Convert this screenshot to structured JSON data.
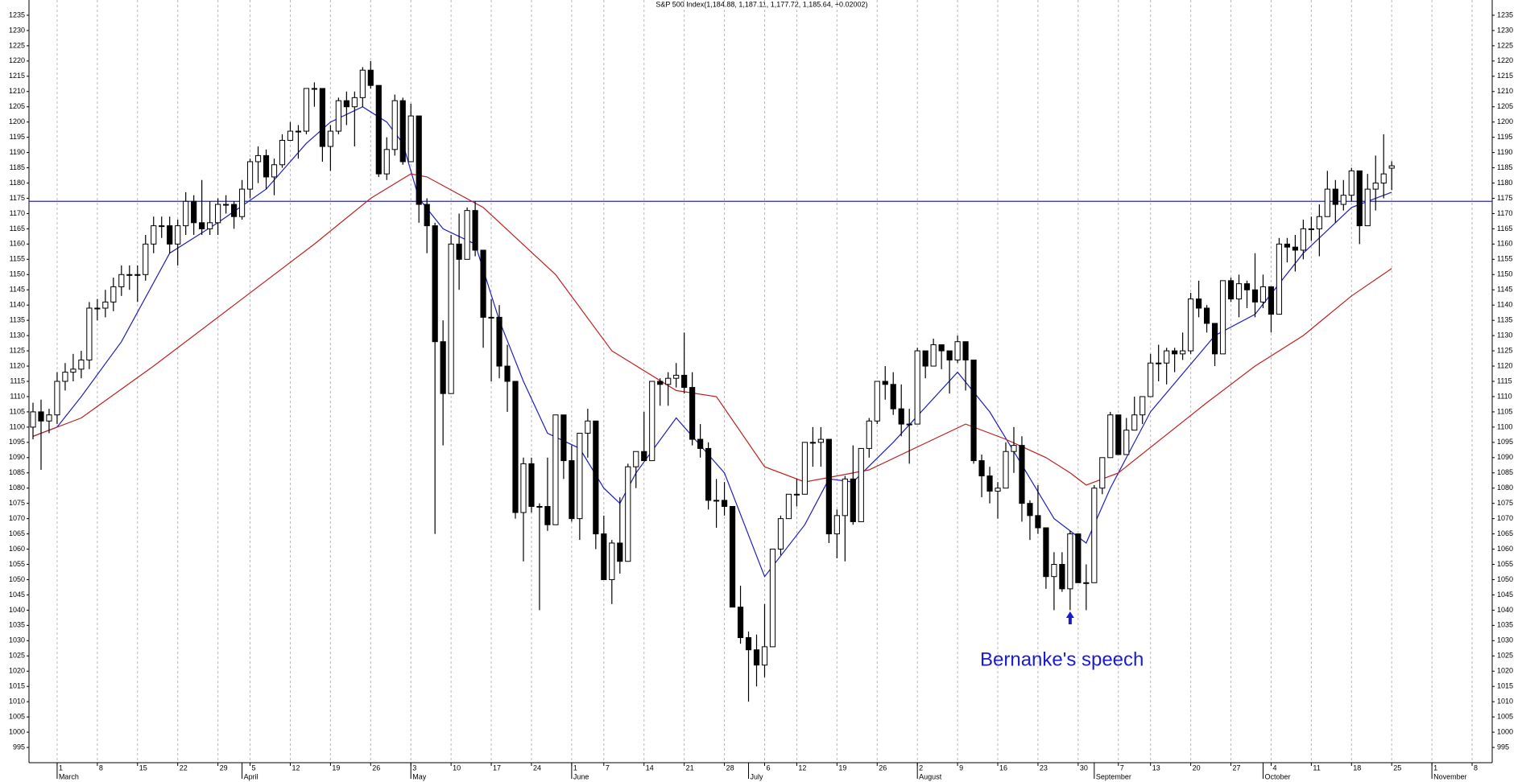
{
  "chart_data": {
    "type": "candlestick",
    "title": "S&P 500 Index(1,184.88, 1,187.11, 1,177.72, 1,185.64, +0.02002)",
    "annotation": "Bernanke's speech",
    "annotation_color": "#1a1ad0",
    "up_color": "#ffffff",
    "down_color": "#000000",
    "grid": true,
    "ylim": [
      990,
      1240
    ],
    "yticks": [
      995,
      1000,
      1005,
      1010,
      1015,
      1020,
      1025,
      1030,
      1035,
      1040,
      1045,
      1050,
      1055,
      1060,
      1065,
      1070,
      1075,
      1080,
      1085,
      1090,
      1095,
      1100,
      1105,
      1110,
      1115,
      1120,
      1125,
      1130,
      1135,
      1140,
      1145,
      1150,
      1155,
      1160,
      1165,
      1170,
      1175,
      1180,
      1185,
      1190,
      1195,
      1200,
      1205,
      1210,
      1215,
      1220,
      1225,
      1230,
      1235
    ],
    "hline": {
      "value": 1174,
      "color": "#2a2aa8"
    },
    "categories": [
      null,
      null,
      null,
      "1",
      null,
      null,
      null,
      null,
      "8",
      null,
      null,
      null,
      null,
      "15",
      null,
      null,
      null,
      null,
      "22",
      null,
      null,
      null,
      null,
      "29",
      null,
      null,
      null,
      "5",
      null,
      null,
      null,
      null,
      "12",
      null,
      null,
      null,
      null,
      "19",
      null,
      null,
      null,
      null,
      "26",
      null,
      null,
      null,
      null,
      "3",
      null,
      null,
      null,
      null,
      "10",
      null,
      null,
      null,
      null,
      "17",
      null,
      null,
      null,
      null,
      "24",
      null,
      null,
      null,
      null,
      "1",
      null,
      null,
      null,
      "7",
      null,
      null,
      null,
      null,
      "14",
      null,
      null,
      null,
      null,
      "21",
      null,
      null,
      null,
      null,
      "28",
      null,
      null,
      null,
      null,
      "6",
      null,
      null,
      null,
      "12",
      null,
      null,
      null,
      null,
      "19",
      null,
      null,
      null,
      null,
      "26",
      null,
      null,
      null,
      null,
      "2",
      null,
      null,
      null,
      null,
      "9",
      null,
      null,
      null,
      null,
      "16",
      null,
      null,
      null,
      null,
      "23",
      null,
      null,
      null,
      null,
      "30",
      null,
      null,
      null,
      null,
      "7",
      null,
      null,
      null,
      "13",
      null,
      null,
      null,
      null,
      "20",
      null,
      null,
      null,
      null,
      "27",
      null,
      null,
      null,
      null,
      "4",
      null,
      null,
      null,
      null,
      "11",
      null,
      null,
      null,
      null,
      "18",
      null,
      null,
      null,
      null,
      "25",
      null,
      null,
      null,
      null,
      "1",
      null,
      null,
      null,
      null,
      "8",
      null,
      null
    ],
    "month_ticks": [
      {
        "value": 3,
        "label": "March"
      },
      {
        "value": 26,
        "label": "April"
      },
      {
        "value": 47,
        "label": "May"
      },
      {
        "value": 67,
        "label": "June"
      },
      {
        "value": 89,
        "label": "July"
      },
      {
        "value": 110,
        "label": "August"
      },
      {
        "value": 132,
        "label": "September"
      },
      {
        "value": 153,
        "label": "October"
      },
      {
        "value": 174,
        "label": "November"
      }
    ],
    "ohlc": [
      [
        1100,
        1108,
        1096,
        1105
      ],
      [
        1105,
        1109,
        1086,
        1102
      ],
      [
        1102,
        1106,
        1098,
        1104
      ],
      [
        1104,
        1118,
        1101,
        1115
      ],
      [
        1115,
        1121,
        1112,
        1118
      ],
      [
        1118,
        1124,
        1115,
        1119
      ],
      [
        1119,
        1125,
        1116,
        1122
      ],
      [
        1122,
        1141,
        1119,
        1139
      ],
      [
        1139,
        1142,
        1135,
        1139
      ],
      [
        1139,
        1145,
        1136,
        1141
      ],
      [
        1141,
        1149,
        1138,
        1146
      ],
      [
        1146,
        1153,
        1143,
        1150
      ],
      [
        1150,
        1153,
        1145,
        1150
      ],
      [
        1150,
        1153,
        1141,
        1150
      ],
      [
        1150,
        1163,
        1148,
        1160
      ],
      [
        1160,
        1169,
        1157,
        1166
      ],
      [
        1166,
        1169,
        1162,
        1166
      ],
      [
        1166,
        1169,
        1157,
        1160
      ],
      [
        1160,
        1168,
        1153,
        1166
      ],
      [
        1166,
        1177,
        1163,
        1174
      ],
      [
        1174,
        1176,
        1163,
        1167
      ],
      [
        1167,
        1181,
        1163,
        1165
      ],
      [
        1165,
        1174,
        1163,
        1167
      ],
      [
        1167,
        1175,
        1163,
        1173
      ],
      [
        1173,
        1176,
        1170,
        1173
      ],
      [
        1173,
        1174,
        1165,
        1169
      ],
      [
        1169,
        1181,
        1168,
        1178
      ],
      [
        1178,
        1188,
        1175,
        1187
      ],
      [
        1187,
        1192,
        1180,
        1189
      ],
      [
        1189,
        1191,
        1178,
        1182
      ],
      [
        1182,
        1188,
        1176,
        1186
      ],
      [
        1186,
        1196,
        1185,
        1194
      ],
      [
        1194,
        1200,
        1194,
        1197
      ],
      [
        1197,
        1199,
        1188,
        1197
      ],
      [
        1197,
        1211,
        1196,
        1211
      ],
      [
        1211,
        1213,
        1205,
        1211
      ],
      [
        1211,
        1211,
        1187,
        1192
      ],
      [
        1192,
        1199,
        1184,
        1197
      ],
      [
        1197,
        1208,
        1196,
        1207
      ],
      [
        1207,
        1210,
        1199,
        1205
      ],
      [
        1205,
        1210,
        1192,
        1208
      ],
      [
        1208,
        1218,
        1205,
        1217
      ],
      [
        1217,
        1220,
        1211,
        1212
      ],
      [
        1212,
        1212,
        1182,
        1183
      ],
      [
        1183,
        1195,
        1181,
        1191
      ],
      [
        1191,
        1209,
        1189,
        1207
      ],
      [
        1207,
        1208,
        1186,
        1187
      ],
      [
        1187,
        1206,
        1187,
        1202
      ],
      [
        1202,
        1202,
        1167,
        1173
      ],
      [
        1173,
        1175,
        1157,
        1166
      ],
      [
        1166,
        1167,
        1065,
        1128
      ],
      [
        1128,
        1135,
        1094,
        1111
      ],
      [
        1111,
        1163,
        1111,
        1160
      ],
      [
        1160,
        1170,
        1145,
        1155
      ],
      [
        1155,
        1172,
        1155,
        1171
      ],
      [
        1171,
        1174,
        1156,
        1158
      ],
      [
        1158,
        1158,
        1126,
        1136
      ],
      [
        1136,
        1142,
        1115,
        1136
      ],
      [
        1136,
        1140,
        1116,
        1120
      ],
      [
        1120,
        1127,
        1105,
        1115
      ],
      [
        1115,
        1115,
        1070,
        1072
      ],
      [
        1072,
        1090,
        1056,
        1088
      ],
      [
        1088,
        1090,
        1072,
        1074
      ],
      [
        1074,
        1075,
        1040,
        1074
      ],
      [
        1074,
        1090,
        1066,
        1068
      ],
      [
        1068,
        1104,
        1068,
        1104
      ],
      [
        1104,
        1104,
        1083,
        1089
      ],
      [
        1089,
        1094,
        1069,
        1070
      ],
      [
        1070,
        1098,
        1063,
        1098
      ],
      [
        1098,
        1106,
        1090,
        1102
      ],
      [
        1102,
        1102,
        1060,
        1065
      ],
      [
        1065,
        1071,
        1050,
        1050
      ],
      [
        1050,
        1063,
        1042,
        1062
      ],
      [
        1062,
        1077,
        1052,
        1056
      ],
      [
        1056,
        1088,
        1056,
        1087
      ],
      [
        1087,
        1092,
        1080,
        1092
      ],
      [
        1092,
        1105,
        1089,
        1089
      ],
      [
        1089,
        1115,
        1089,
        1115
      ],
      [
        1115,
        1116,
        1107,
        1114
      ],
      [
        1114,
        1118,
        1107,
        1116
      ],
      [
        1116,
        1121,
        1113,
        1117
      ],
      [
        1117,
        1131,
        1111,
        1113
      ],
      [
        1113,
        1118,
        1094,
        1096
      ],
      [
        1096,
        1101,
        1090,
        1093
      ],
      [
        1093,
        1095,
        1073,
        1076
      ],
      [
        1076,
        1083,
        1067,
        1076
      ],
      [
        1076,
        1082,
        1071,
        1074
      ],
      [
        1074,
        1074,
        1041,
        1041
      ],
      [
        1041,
        1048,
        1029,
        1031
      ],
      [
        1031,
        1033,
        1010,
        1027
      ],
      [
        1027,
        1032,
        1015,
        1022
      ],
      [
        1022,
        1042,
        1018,
        1028
      ],
      [
        1028,
        1060,
        1028,
        1060
      ],
      [
        1060,
        1071,
        1058,
        1070
      ],
      [
        1070,
        1078,
        1070,
        1078
      ],
      [
        1078,
        1083,
        1074,
        1078
      ],
      [
        1078,
        1095,
        1078,
        1095
      ],
      [
        1095,
        1100,
        1087,
        1095
      ],
      [
        1095,
        1100,
        1087,
        1096
      ],
      [
        1096,
        1096,
        1062,
        1065
      ],
      [
        1065,
        1073,
        1057,
        1071
      ],
      [
        1071,
        1084,
        1056,
        1083
      ],
      [
        1083,
        1094,
        1068,
        1069
      ],
      [
        1069,
        1093,
        1069,
        1093
      ],
      [
        1093,
        1103,
        1090,
        1102
      ],
      [
        1102,
        1115,
        1101,
        1115
      ],
      [
        1115,
        1120,
        1109,
        1114
      ],
      [
        1114,
        1118,
        1104,
        1106
      ],
      [
        1106,
        1114,
        1097,
        1101
      ],
      [
        1101,
        1106,
        1088,
        1101
      ],
      [
        1101,
        1126,
        1101,
        1125
      ],
      [
        1125,
        1125,
        1116,
        1120
      ],
      [
        1120,
        1129,
        1120,
        1127
      ],
      [
        1127,
        1127,
        1119,
        1125
      ],
      [
        1125,
        1125,
        1111,
        1122
      ],
      [
        1122,
        1130,
        1121,
        1128
      ],
      [
        1128,
        1128,
        1112,
        1122
      ],
      [
        1122,
        1122,
        1088,
        1089
      ],
      [
        1089,
        1091,
        1077,
        1084
      ],
      [
        1084,
        1087,
        1075,
        1079
      ],
      [
        1079,
        1082,
        1070,
        1080
      ],
      [
        1080,
        1095,
        1080,
        1092
      ],
      [
        1092,
        1100,
        1085,
        1094
      ],
      [
        1094,
        1097,
        1069,
        1075
      ],
      [
        1075,
        1076,
        1063,
        1071
      ],
      [
        1071,
        1081,
        1065,
        1067
      ],
      [
        1067,
        1067,
        1047,
        1051
      ],
      [
        1051,
        1059,
        1040,
        1055
      ],
      [
        1055,
        1059,
        1046,
        1047
      ],
      [
        1047,
        1066,
        1040,
        1065
      ],
      [
        1065,
        1065,
        1049,
        1049
      ],
      [
        1049,
        1055,
        1040,
        1049
      ],
      [
        1049,
        1081,
        1049,
        1080
      ],
      [
        1080,
        1090,
        1078,
        1090
      ],
      [
        1090,
        1105,
        1090,
        1104
      ],
      [
        1104,
        1104,
        1091,
        1091
      ],
      [
        1091,
        1103,
        1091,
        1099
      ],
      [
        1099,
        1110,
        1099,
        1104
      ],
      [
        1104,
        1110,
        1101,
        1110
      ],
      [
        1110,
        1124,
        1110,
        1121
      ],
      [
        1121,
        1127,
        1115,
        1121
      ],
      [
        1121,
        1126,
        1114,
        1125
      ],
      [
        1125,
        1126,
        1118,
        1124
      ],
      [
        1124,
        1131,
        1122,
        1125
      ],
      [
        1125,
        1144,
        1124,
        1142
      ],
      [
        1142,
        1148,
        1136,
        1139
      ],
      [
        1139,
        1140,
        1131,
        1134
      ],
      [
        1134,
        1134,
        1120,
        1124
      ],
      [
        1124,
        1148,
        1124,
        1148
      ],
      [
        1148,
        1149,
        1141,
        1142
      ],
      [
        1142,
        1150,
        1136,
        1147
      ],
      [
        1147,
        1148,
        1139,
        1145
      ],
      [
        1145,
        1157,
        1136,
        1141
      ],
      [
        1141,
        1150,
        1139,
        1146
      ],
      [
        1146,
        1146,
        1131,
        1137
      ],
      [
        1137,
        1162,
        1137,
        1160
      ],
      [
        1160,
        1162,
        1154,
        1159
      ],
      [
        1159,
        1163,
        1151,
        1158
      ],
      [
        1158,
        1168,
        1155,
        1165
      ],
      [
        1165,
        1169,
        1161,
        1165
      ],
      [
        1165,
        1173,
        1156,
        1169
      ],
      [
        1169,
        1184,
        1169,
        1178
      ],
      [
        1178,
        1181,
        1167,
        1173
      ],
      [
        1173,
        1181,
        1171,
        1176
      ],
      [
        1176,
        1185,
        1174,
        1184
      ],
      [
        1184,
        1184,
        1160,
        1166
      ],
      [
        1166,
        1183,
        1166,
        1178
      ],
      [
        1178,
        1189,
        1171,
        1180
      ],
      [
        1180,
        1196,
        1175,
        1183
      ],
      [
        1184.88,
        1187.11,
        1177.72,
        1185.64
      ],
      null,
      null,
      null,
      null,
      null,
      null,
      null,
      null,
      null,
      null,
      null,
      null
    ],
    "lines": [
      {
        "color": "#1f1fbf",
        "x": [
          0,
          3,
          6,
          11,
          17,
          23,
          29,
          34,
          37,
          41,
          44,
          46,
          48,
          51,
          55,
          58,
          61,
          64,
          68,
          71,
          73,
          75,
          80,
          86,
          91,
          96,
          99,
          102,
          107,
          115,
          119,
          122,
          127,
          131,
          134,
          139,
          147,
          152,
          158,
          164,
          169
        ],
        "values": [
          1097,
          1100,
          1110,
          1128,
          1157,
          1167,
          1178,
          1193,
          1200,
          1205,
          1200,
          1193,
          1175,
          1165,
          1160,
          1135,
          1115,
          1098,
          1093,
          1080,
          1075,
          1085,
          1103,
          1085,
          1051,
          1068,
          1083,
          1082,
          1095,
          1118,
          1105,
          1092,
          1070,
          1062,
          1080,
          1105,
          1130,
          1137,
          1157,
          1172,
          1177
        ]
      },
      {
        "color": "#c02020",
        "x": [
          0,
          6,
          15,
          25,
          35,
          42,
          47,
          49,
          56,
          65,
          72,
          80,
          85,
          91,
          96,
          104,
          116,
          121,
          126,
          129,
          131,
          135,
          146,
          152,
          158,
          164,
          169
        ],
        "values": [
          1097,
          1103,
          1120,
          1140,
          1160,
          1175,
          1183,
          1182,
          1172,
          1150,
          1125,
          1112,
          1110,
          1087,
          1082,
          1086,
          1101,
          1096,
          1090,
          1085,
          1081,
          1085,
          1108,
          1120,
          1130,
          1143,
          1152
        ]
      }
    ]
  }
}
